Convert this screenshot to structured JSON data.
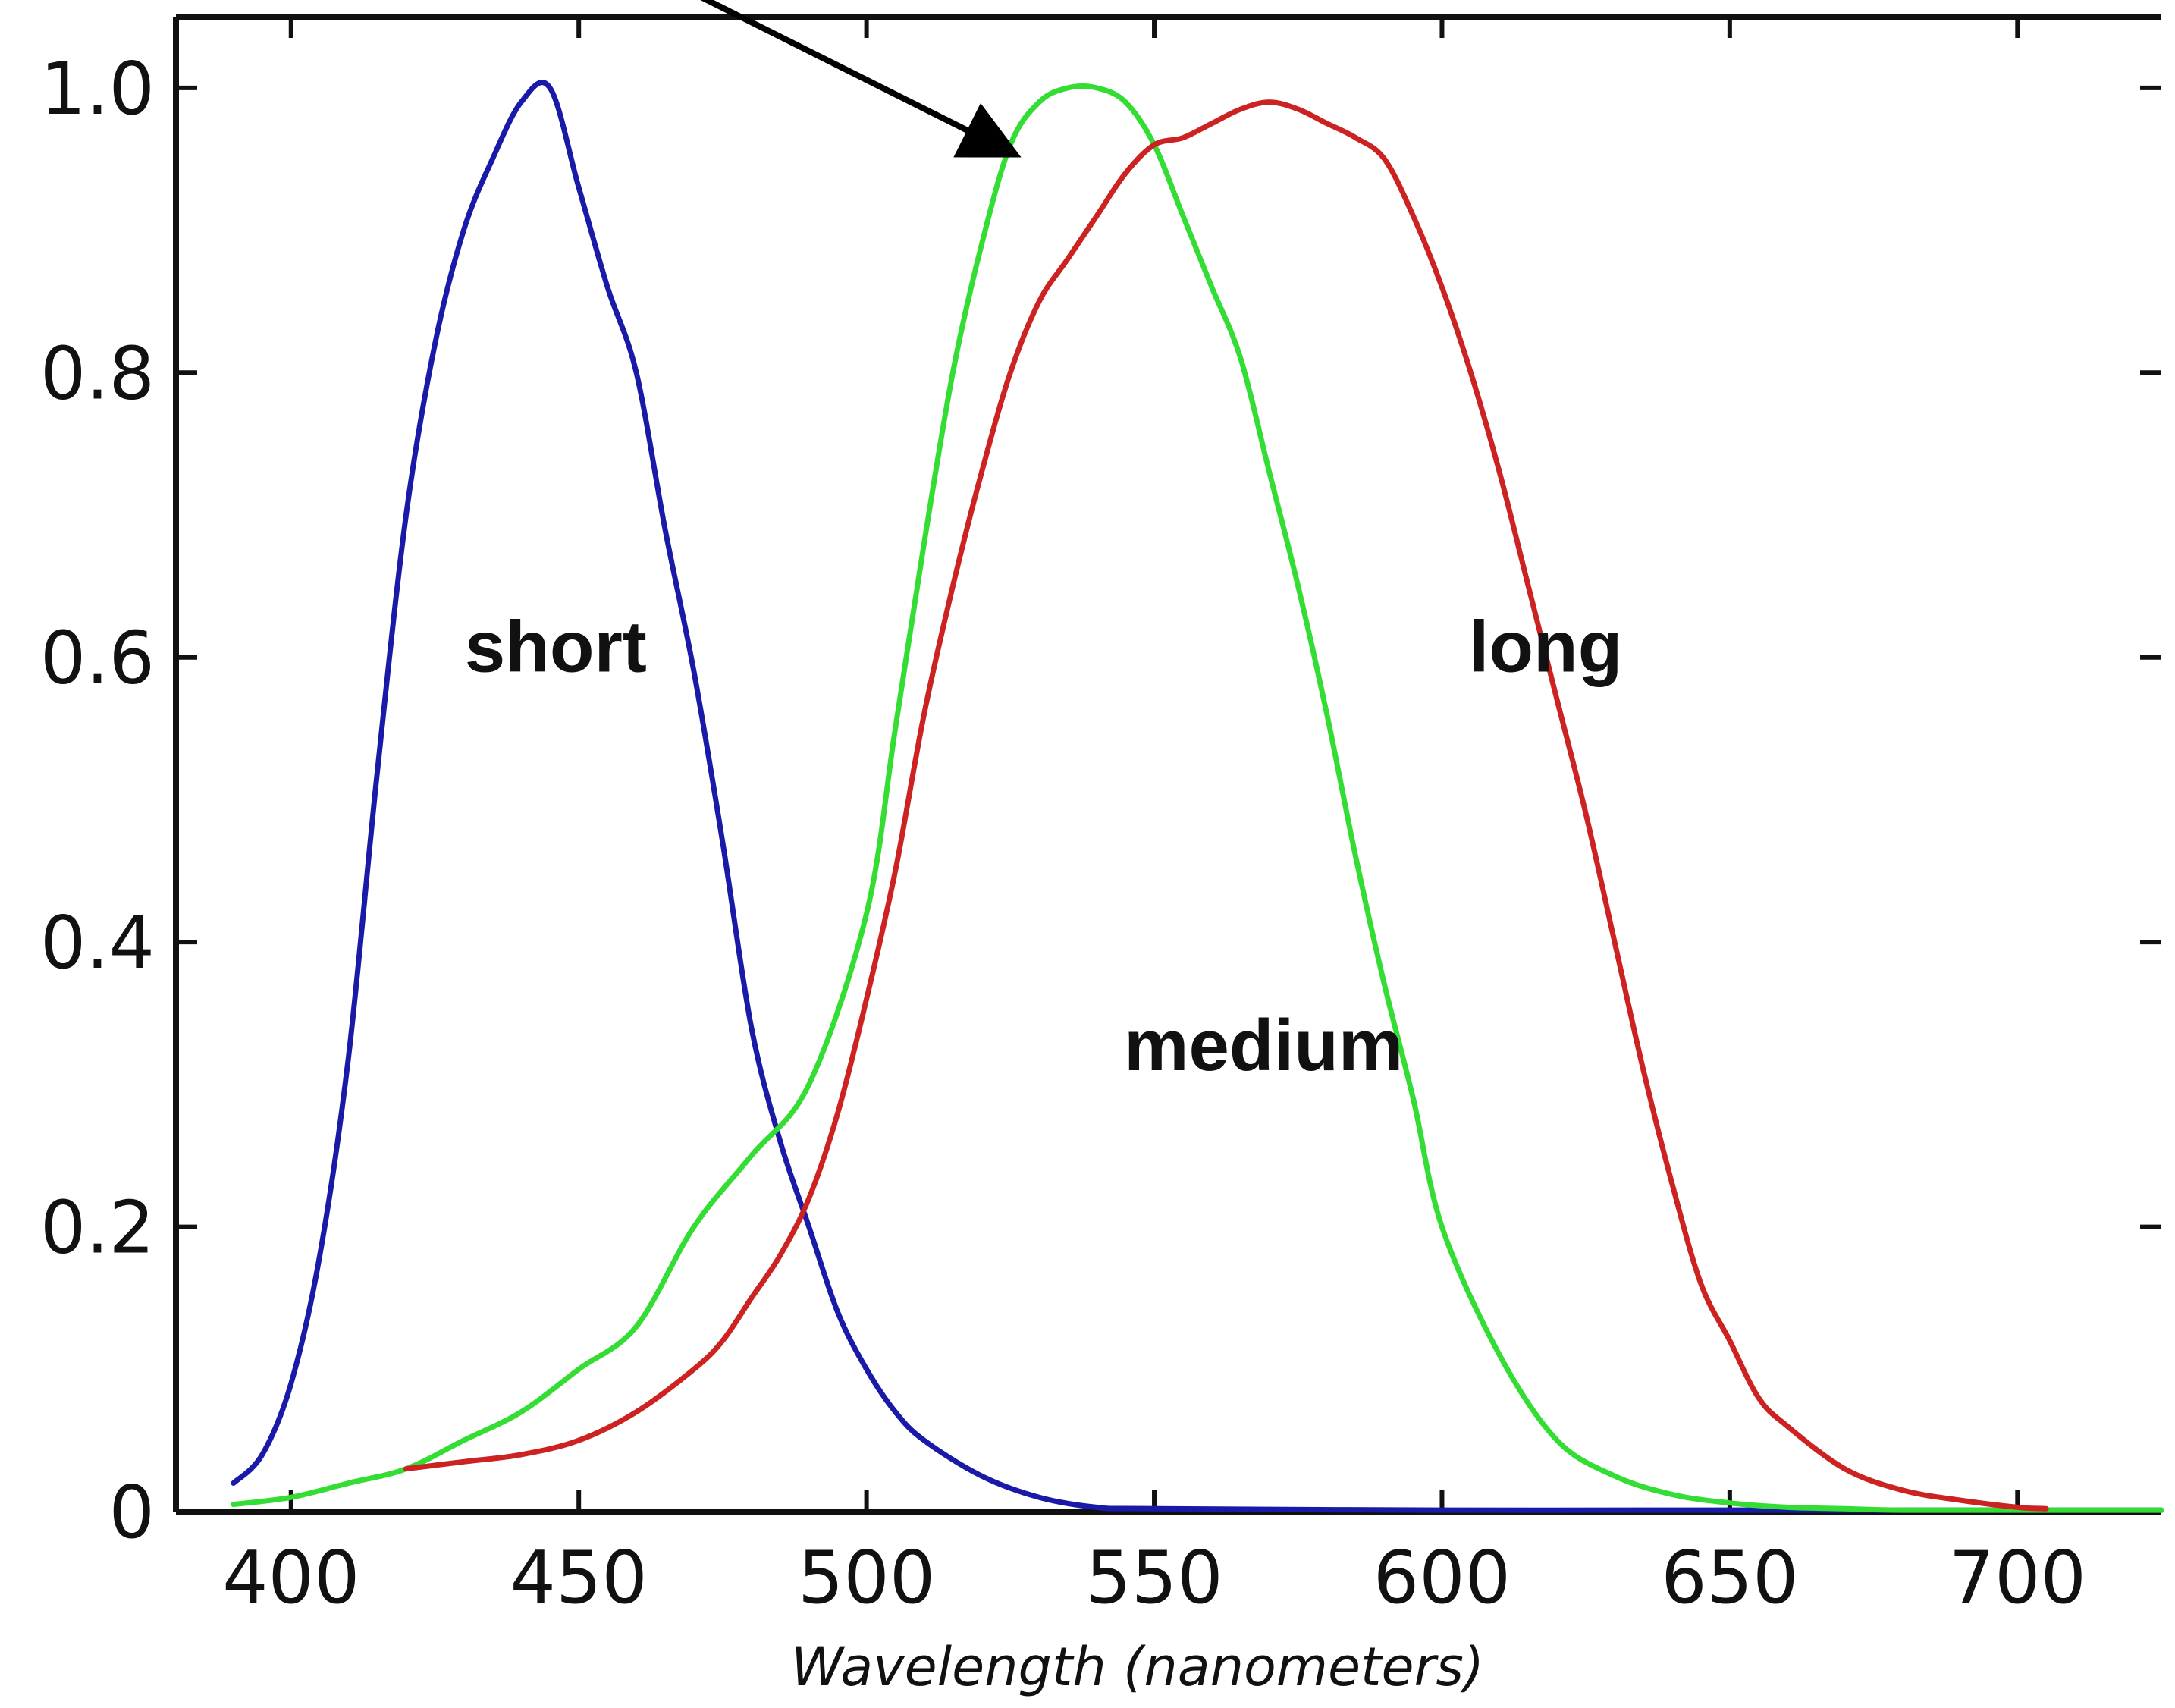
{
  "chart_data": {
    "type": "line",
    "title": "",
    "xlabel": "Wavelength (nanometers)",
    "ylabel": "",
    "xlim": [
      380,
      725
    ],
    "ylim": [
      0,
      1.05
    ],
    "xticks": [
      400,
      450,
      500,
      550,
      600,
      650,
      700
    ],
    "xtick_labels": [
      "400",
      "450",
      "500",
      "550",
      "600",
      "650",
      "700"
    ],
    "yticks": [
      0,
      0.2,
      0.4,
      0.6,
      0.8,
      1.0
    ],
    "ytick_labels": [
      "0",
      "0.2",
      "0.4",
      "0.6",
      "0.8",
      "1.0"
    ],
    "grid": false,
    "legend": "none",
    "series": [
      {
        "name": "short",
        "color": "#1a1aa8",
        "x": [
          390,
          395,
          400,
          405,
          410,
          415,
          420,
          425,
          430,
          435,
          440,
          445,
          450,
          455,
          460,
          465,
          470,
          475,
          480,
          485,
          490,
          495,
          500,
          505,
          510,
          520,
          530,
          540,
          550,
          600,
          650,
          700,
          725
        ],
        "y": [
          0.02,
          0.04,
          0.09,
          0.18,
          0.32,
          0.52,
          0.7,
          0.82,
          0.9,
          0.95,
          0.99,
          1.0,
          0.93,
          0.86,
          0.8,
          0.69,
          0.59,
          0.47,
          0.34,
          0.26,
          0.2,
          0.14,
          0.1,
          0.07,
          0.05,
          0.025,
          0.01,
          0.003,
          0.002,
          0.001,
          0.001,
          0.001,
          0.001
        ]
      },
      {
        "name": "medium",
        "color": "#33dd33",
        "x": [
          390,
          400,
          410,
          420,
          430,
          440,
          450,
          460,
          470,
          480,
          490,
          500,
          505,
          510,
          515,
          520,
          525,
          530,
          535,
          540,
          545,
          550,
          555,
          560,
          565,
          570,
          575,
          580,
          585,
          590,
          595,
          600,
          610,
          620,
          630,
          640,
          650,
          660,
          670,
          680,
          700,
          725
        ],
        "y": [
          0.005,
          0.01,
          0.02,
          0.03,
          0.05,
          0.07,
          0.1,
          0.13,
          0.2,
          0.25,
          0.3,
          0.42,
          0.55,
          0.68,
          0.8,
          0.89,
          0.96,
          0.99,
          1.0,
          1.0,
          0.99,
          0.96,
          0.91,
          0.86,
          0.81,
          0.73,
          0.65,
          0.56,
          0.46,
          0.37,
          0.29,
          0.2,
          0.11,
          0.05,
          0.025,
          0.012,
          0.006,
          0.003,
          0.002,
          0.001,
          0.001,
          0.001
        ]
      },
      {
        "name": "long",
        "color": "#cc2222",
        "x": [
          420,
          430,
          440,
          450,
          460,
          470,
          475,
          480,
          485,
          490,
          495,
          500,
          505,
          510,
          515,
          520,
          525,
          530,
          535,
          540,
          545,
          550,
          555,
          560,
          565,
          570,
          575,
          580,
          585,
          590,
          595,
          600,
          605,
          610,
          615,
          620,
          625,
          630,
          635,
          640,
          645,
          650,
          655,
          660,
          670,
          680,
          690,
          700,
          705
        ],
        "y": [
          0.03,
          0.035,
          0.04,
          0.05,
          0.07,
          0.1,
          0.12,
          0.15,
          0.18,
          0.22,
          0.28,
          0.36,
          0.45,
          0.56,
          0.65,
          0.73,
          0.8,
          0.85,
          0.88,
          0.91,
          0.94,
          0.96,
          0.965,
          0.975,
          0.985,
          0.99,
          0.985,
          0.975,
          0.965,
          0.95,
          0.91,
          0.86,
          0.8,
          0.73,
          0.65,
          0.57,
          0.49,
          0.4,
          0.31,
          0.23,
          0.16,
          0.12,
          0.08,
          0.06,
          0.03,
          0.015,
          0.008,
          0.003,
          0.002
        ]
      }
    ],
    "annotations": [
      {
        "text": "short",
        "x": 446,
        "y": 0.59
      },
      {
        "text": "medium",
        "x": 569,
        "y": 0.31
      },
      {
        "text": "long",
        "x": 618,
        "y": 0.59
      }
    ],
    "arrow": {
      "to_x": 525,
      "to_y": 0.955
    }
  }
}
